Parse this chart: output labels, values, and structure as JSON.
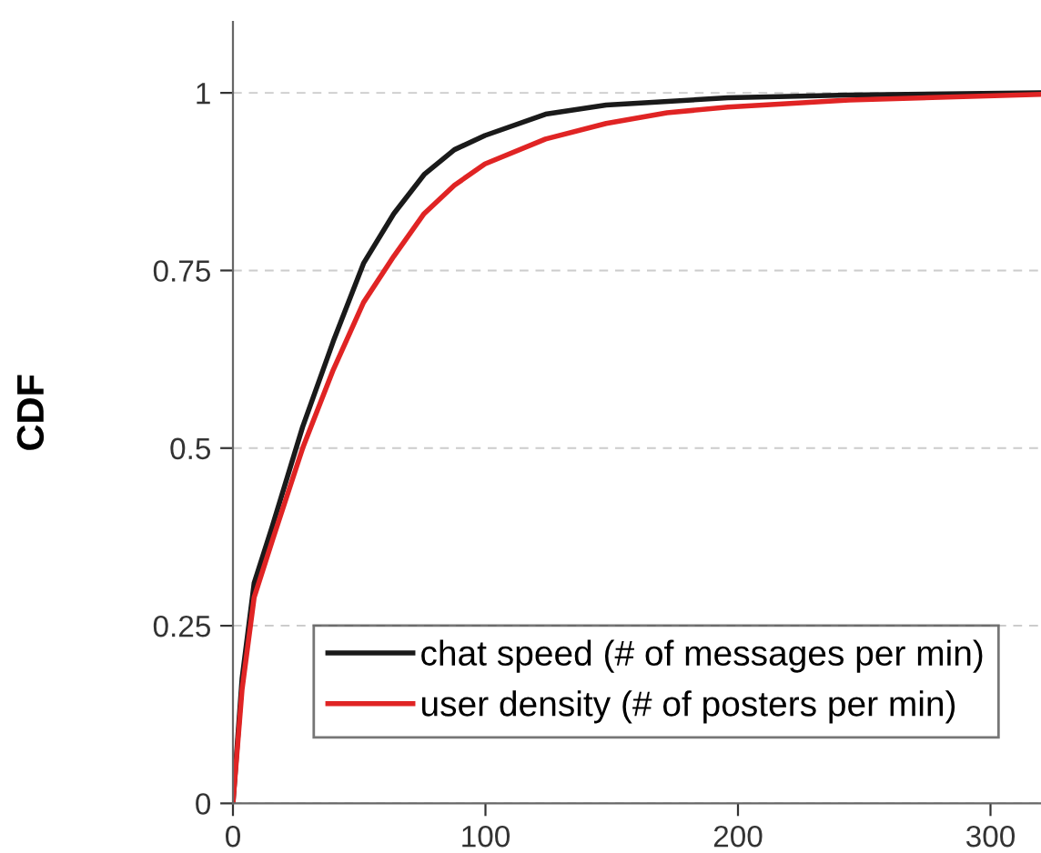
{
  "chart_data": {
    "type": "line",
    "ylabel": "CDF",
    "xlim": [
      0,
      320
    ],
    "xticks": [
      0,
      100,
      200,
      300
    ],
    "ylim": [
      0,
      1.1
    ],
    "yticks": [
      0,
      0.25,
      0.5,
      0.75,
      1
    ],
    "grid": "y",
    "legend": "bottom right",
    "marker": "none",
    "line_style": "solid",
    "series": [
      {
        "name": "chat speed (# of messages per min)",
        "color": "#1a1a1a",
        "x": [
          0,
          3.6,
          8.4,
          15.6,
          27.6,
          39.7,
          51.7,
          63.7,
          75.7,
          87.7,
          99.8,
          123.8,
          147.8,
          196,
          244,
          320
        ],
        "values": [
          0,
          0.175,
          0.31,
          0.39,
          0.53,
          0.65,
          0.76,
          0.83,
          0.885,
          0.92,
          0.94,
          0.97,
          0.983,
          0.993,
          0.997,
          1.0
        ]
      },
      {
        "name": "user density (# of posters per min)",
        "color": "#e02424",
        "x": [
          0,
          3.6,
          8.4,
          15.6,
          27.6,
          39.7,
          51.7,
          63.7,
          75.7,
          87.7,
          99.8,
          123.8,
          147.8,
          171.9,
          196,
          244,
          320
        ],
        "values": [
          0,
          0.16,
          0.29,
          0.37,
          0.5,
          0.61,
          0.705,
          0.77,
          0.83,
          0.87,
          0.9,
          0.935,
          0.957,
          0.972,
          0.98,
          0.99,
          0.998
        ]
      }
    ]
  }
}
